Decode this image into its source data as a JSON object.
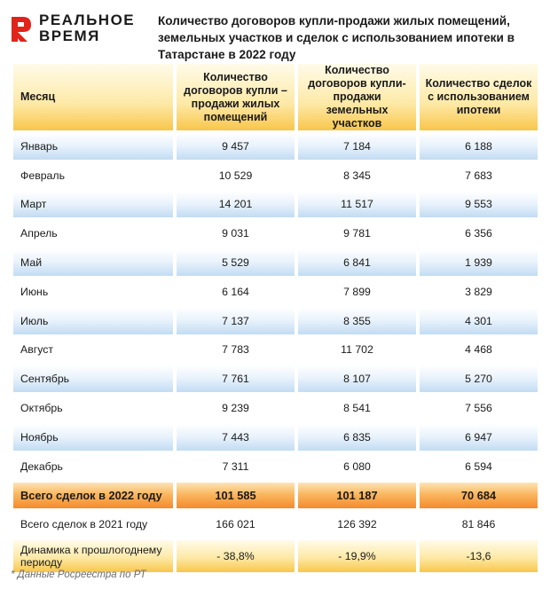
{
  "logo": {
    "line1": "РЕАЛЬНОЕ",
    "line2": "ВРЕМЯ",
    "accent_color": "#e2231a"
  },
  "title": "Количество договоров купли-продажи жилых помещений, земельных участков и сделок с использованием ипотеки в Татарстане в 2022 году",
  "table": {
    "headers": [
      "Месяц",
      "Количество договоров купли – продажи жилых помещений",
      "Количество договоров купли-продажи земельных участков",
      "Количество сделок с использованием ипотеки"
    ],
    "rows": [
      [
        "Январь",
        "9 457",
        "7 184",
        "6 188"
      ],
      [
        "Февраль",
        "10 529",
        "8 345",
        "7 683"
      ],
      [
        "Март",
        "14 201",
        "11 517",
        "9 553"
      ],
      [
        "Апрель",
        "9 031",
        "9 781",
        "6 356"
      ],
      [
        "Май",
        "5 529",
        "6 841",
        "1 939"
      ],
      [
        "Июнь",
        "6 164",
        "7 899",
        "3 829"
      ],
      [
        "Июль",
        "7 137",
        "8 355",
        "4 301"
      ],
      [
        "Август",
        "7 783",
        "11 702",
        "4 468"
      ],
      [
        "Сентябрь",
        "7 761",
        "8 107",
        "5 270"
      ],
      [
        "Октябрь",
        "9 239",
        "8 541",
        "7 556"
      ],
      [
        "Ноябрь",
        "7 443",
        "6 835",
        "6 947"
      ],
      [
        "Декабрь",
        "7 311",
        "6 080",
        "6 594"
      ]
    ],
    "total_2022": [
      "Всего сделок в 2022 году",
      "101 585",
      "101 187",
      "70 684"
    ],
    "total_2021": [
      "Всего сделок в 2021 году",
      "166 021",
      "126 392",
      "81 846"
    ],
    "dynamics": [
      "Динамика к прошлогоднему периоду",
      "- 38,8%",
      "- 19,9%",
      "-13,6"
    ]
  },
  "footnote": "* Данные Росреестра по РТ"
}
